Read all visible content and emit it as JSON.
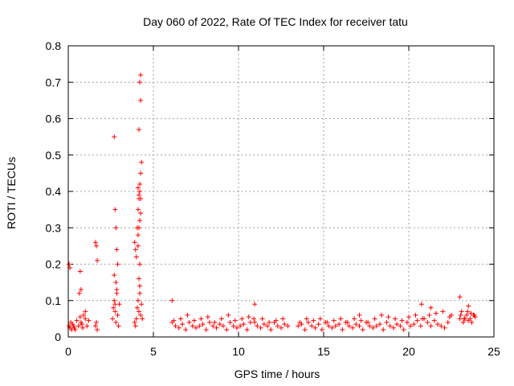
{
  "chart_data": {
    "type": "scatter",
    "title": "Day 060 of 2022, Rate Of TEC Index for receiver tatu",
    "xlabel": "GPS time / hours",
    "ylabel": "ROTI / TECUs",
    "xlim": [
      0,
      25
    ],
    "ylim": [
      0,
      0.8
    ],
    "x_ticks": [
      "0",
      "5",
      "10",
      "15",
      "20",
      "25"
    ],
    "y_ticks": [
      "0",
      "0.1",
      "0.2",
      "0.3",
      "0.4",
      "0.5",
      "0.6",
      "0.7",
      "0.8"
    ],
    "grid": true,
    "marker": "+",
    "color": "#ff0000",
    "series": [
      {
        "x": [
          0.05,
          0.1,
          0.15,
          0.2,
          0.25,
          0.3,
          0.35,
          0.4,
          0.5,
          0.6,
          0.7,
          0.75,
          0.8,
          0.85,
          0.9,
          1.0,
          1.1,
          1.2,
          1.6,
          1.65,
          1.7,
          2.6,
          2.65,
          2.7,
          2.75,
          2.8,
          2.85,
          2.9,
          2.95,
          3.0,
          3.9,
          3.95,
          4.0,
          4.05,
          4.1,
          4.15,
          4.2,
          4.25,
          4.3,
          4.35,
          0.05,
          0.1,
          0.7,
          0.75,
          0.65,
          1.0,
          1.6,
          1.65,
          1.7,
          2.7,
          2.75,
          2.8,
          2.85,
          2.9,
          2.7,
          2.8,
          2.85,
          2.75,
          3.9,
          3.95,
          4.0,
          4.05,
          4.1,
          4.15,
          4.2,
          4.25,
          4.3,
          4.1,
          4.15,
          4.2,
          4.25,
          4.1,
          4.15,
          4.2,
          4.25,
          4.1,
          4.2,
          4.15,
          4.2,
          4.15,
          4.25,
          4.2,
          4.25,
          6.1,
          6.3,
          6.5,
          6.7,
          6.9,
          7.1,
          7.3,
          7.5,
          7.7,
          7.9,
          8.1,
          8.3,
          8.5,
          8.7,
          8.9,
          9.1,
          9.3,
          9.5,
          9.7,
          9.9,
          10.1,
          10.3,
          10.5,
          10.7,
          10.9,
          11.1,
          11.3,
          11.5,
          11.7,
          11.9,
          12.1,
          12.3,
          12.5,
          12.7,
          12.9,
          13.5,
          13.7,
          13.9,
          14.1,
          14.3,
          14.5,
          14.7,
          14.9,
          15.1,
          15.3,
          15.5,
          15.7,
          15.9,
          16.1,
          16.3,
          16.5,
          16.7,
          16.9,
          17.1,
          17.3,
          17.5,
          17.7,
          17.9,
          18.1,
          18.3,
          18.5,
          18.7,
          18.9,
          19.1,
          19.3,
          19.5,
          19.7,
          19.9,
          20.1,
          20.3,
          20.5,
          20.7,
          20.9,
          21.1,
          21.3,
          21.5,
          21.7,
          21.9,
          22.1,
          22.3,
          22.5,
          23.0,
          23.1,
          23.2,
          23.3,
          23.4,
          23.5,
          23.6,
          23.7,
          23.8,
          23.9,
          6.2,
          6.6,
          7.0,
          7.4,
          7.8,
          8.2,
          8.6,
          9.0,
          9.4,
          9.8,
          10.2,
          10.6,
          10.95,
          11.4,
          11.8,
          12.2,
          12.6,
          13.6,
          14.0,
          14.4,
          14.8,
          15.2,
          15.6,
          16.0,
          16.4,
          16.8,
          17.2,
          17.6,
          18.0,
          18.4,
          18.8,
          19.2,
          19.6,
          20.0,
          20.4,
          20.8,
          21.2,
          21.6,
          22.0,
          22.4,
          23.05,
          23.25,
          23.45,
          23.65,
          23.85,
          6.1,
          10.95,
          17.1,
          20.75,
          21.3,
          23.0,
          23.5
        ],
        "y": [
          0.03,
          0.025,
          0.04,
          0.02,
          0.035,
          0.03,
          0.025,
          0.02,
          0.045,
          0.03,
          0.055,
          0.04,
          0.035,
          0.025,
          0.06,
          0.05,
          0.03,
          0.045,
          0.03,
          0.04,
          0.02,
          0.05,
          0.08,
          0.1,
          0.07,
          0.04,
          0.12,
          0.06,
          0.03,
          0.09,
          0.04,
          0.03,
          0.05,
          0.08,
          0.1,
          0.07,
          0.12,
          0.06,
          0.09,
          0.05,
          0.2,
          0.19,
          0.18,
          0.13,
          0.12,
          0.07,
          0.26,
          0.25,
          0.21,
          0.55,
          0.35,
          0.3,
          0.24,
          0.2,
          0.17,
          0.15,
          0.13,
          0.09,
          0.26,
          0.24,
          0.22,
          0.3,
          0.35,
          0.38,
          0.42,
          0.45,
          0.48,
          0.41,
          0.39,
          0.4,
          0.38,
          0.28,
          0.3,
          0.32,
          0.34,
          0.25,
          0.2,
          0.16,
          0.14,
          0.57,
          0.65,
          0.7,
          0.72,
          0.04,
          0.03,
          0.025,
          0.035,
          0.02,
          0.04,
          0.03,
          0.025,
          0.03,
          0.035,
          0.02,
          0.04,
          0.03,
          0.025,
          0.035,
          0.03,
          0.02,
          0.04,
          0.03,
          0.025,
          0.03,
          0.035,
          0.02,
          0.04,
          0.05,
          0.03,
          0.025,
          0.035,
          0.03,
          0.02,
          0.04,
          0.03,
          0.025,
          0.035,
          0.03,
          0.03,
          0.035,
          0.02,
          0.04,
          0.03,
          0.025,
          0.035,
          0.02,
          0.04,
          0.03,
          0.025,
          0.03,
          0.035,
          0.02,
          0.04,
          0.03,
          0.025,
          0.035,
          0.03,
          0.02,
          0.04,
          0.03,
          0.025,
          0.03,
          0.035,
          0.02,
          0.04,
          0.03,
          0.025,
          0.035,
          0.03,
          0.02,
          0.04,
          0.03,
          0.035,
          0.045,
          0.03,
          0.05,
          0.04,
          0.03,
          0.045,
          0.035,
          0.03,
          0.025,
          0.04,
          0.06,
          0.05,
          0.07,
          0.04,
          0.05,
          0.06,
          0.045,
          0.05,
          0.04,
          0.06,
          0.055,
          0.045,
          0.05,
          0.06,
          0.045,
          0.05,
          0.055,
          0.04,
          0.05,
          0.06,
          0.045,
          0.05,
          0.055,
          0.04,
          0.05,
          0.04,
          0.045,
          0.05,
          0.04,
          0.05,
          0.045,
          0.05,
          0.04,
          0.045,
          0.05,
          0.04,
          0.05,
          0.045,
          0.04,
          0.05,
          0.06,
          0.055,
          0.05,
          0.045,
          0.055,
          0.06,
          0.05,
          0.06,
          0.065,
          0.07,
          0.055,
          0.06,
          0.05,
          0.07,
          0.065,
          0.06,
          0.1,
          0.09,
          0.06,
          0.09,
          0.08,
          0.11,
          0.085
        ]
      }
    ]
  }
}
